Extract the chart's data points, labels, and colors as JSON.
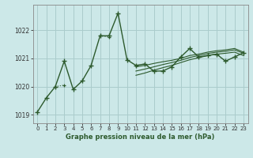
{
  "bg_color": "#cce8e8",
  "line_color": "#2d5a2d",
  "grid_color": "#aacccc",
  "axis_color": "#555555",
  "title": "Graphe pression niveau de la mer (hPa)",
  "title_color": "#2d5a2d",
  "xlim": [
    -0.5,
    23.5
  ],
  "ylim": [
    1018.7,
    1022.9
  ],
  "yticks": [
    1019,
    1020,
    1021,
    1022
  ],
  "xticks": [
    0,
    1,
    2,
    3,
    4,
    5,
    6,
    7,
    8,
    9,
    10,
    11,
    12,
    13,
    14,
    15,
    16,
    17,
    18,
    19,
    20,
    21,
    22,
    23
  ],
  "series_main": [
    1019.1,
    1019.6,
    1020.0,
    1020.9,
    1019.9,
    1020.2,
    1020.75,
    1021.8,
    1021.8,
    1022.6,
    1020.95,
    1020.75,
    1020.8,
    1020.55,
    1020.55,
    1020.7,
    1021.05,
    1021.35,
    1021.05,
    1021.1,
    1021.15,
    1020.9,
    1021.05,
    1021.2
  ],
  "series_dot": [
    null,
    null,
    1020.0,
    1020.05,
    null,
    null,
    null,
    1021.8,
    1021.75,
    null,
    null,
    null,
    null,
    null,
    null,
    null,
    null,
    null,
    null,
    null,
    null,
    null,
    null,
    null
  ],
  "series_trend1": [
    1019.1,
    null,
    null,
    null,
    null,
    null,
    null,
    null,
    null,
    null,
    null,
    1020.7,
    1020.75,
    1020.82,
    1020.88,
    1020.93,
    1021.0,
    1021.1,
    1021.15,
    1021.22,
    1021.27,
    1021.3,
    1021.35,
    1021.22
  ],
  "series_trend2": [
    null,
    null,
    null,
    null,
    null,
    null,
    null,
    null,
    null,
    null,
    null,
    1020.55,
    1020.62,
    1020.7,
    1020.78,
    1020.85,
    1020.93,
    1021.03,
    1021.1,
    1021.17,
    1021.22,
    1021.25,
    1021.3,
    1021.18
  ],
  "series_trend3": [
    null,
    null,
    null,
    null,
    null,
    null,
    null,
    null,
    null,
    null,
    null,
    1020.4,
    1020.48,
    1020.58,
    1020.67,
    1020.75,
    1020.85,
    1020.95,
    1021.02,
    1021.1,
    1021.15,
    1021.18,
    1021.22,
    1021.1
  ]
}
